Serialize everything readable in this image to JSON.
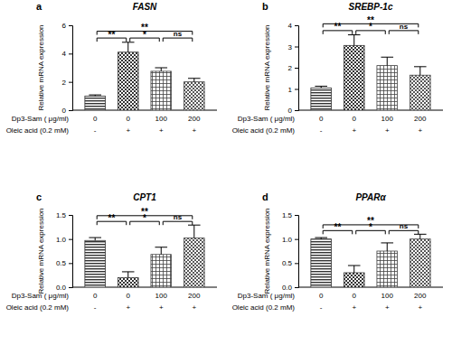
{
  "chart_data": [
    {
      "type": "bar",
      "panel": "a",
      "title": "FASN",
      "y_label": "Relative mRNA expression",
      "category_rows": [
        {
          "label": "Dp3-Sam ( μg/ml)",
          "values": [
            "0",
            "0",
            "100",
            "200"
          ]
        },
        {
          "label": "Oleic acid (0.2 mM)",
          "values": [
            "-",
            "+",
            "+",
            "+"
          ]
        }
      ],
      "values": [
        1.0,
        4.1,
        2.75,
        2.0
      ],
      "errors": [
        0.08,
        0.7,
        0.25,
        0.25
      ],
      "colors": [
        "#333333",
        "#333333",
        "#444444",
        "#444444"
      ],
      "ylim": [
        0,
        6
      ],
      "yticks": [
        0,
        2,
        4,
        6
      ],
      "significance": [
        {
          "from": 0,
          "to": 1,
          "label": "**"
        },
        {
          "from": 1,
          "to": 2,
          "label": "*"
        },
        {
          "from": 2,
          "to": 3,
          "label": "ns"
        },
        {
          "from": 0,
          "to": 3,
          "label": "**"
        }
      ]
    },
    {
      "type": "bar",
      "panel": "b",
      "title": "SREBP-1c",
      "y_label": "Relative mRNA expression",
      "category_rows": [
        {
          "label": "Dp3-Sam ( μg/ml)",
          "values": [
            "0",
            "0",
            "100",
            "200"
          ]
        },
        {
          "label": "Oleic acid (0.2 mM)",
          "values": [
            "-",
            "+",
            "+",
            "+"
          ]
        }
      ],
      "values": [
        1.05,
        3.05,
        2.1,
        1.65
      ],
      "errors": [
        0.08,
        0.5,
        0.4,
        0.4
      ],
      "colors": [
        "#333333",
        "#333333",
        "#444444",
        "#444444"
      ],
      "ylim": [
        0,
        4
      ],
      "yticks": [
        0,
        1,
        2,
        3,
        4
      ],
      "significance": [
        {
          "from": 0,
          "to": 1,
          "label": "**"
        },
        {
          "from": 1,
          "to": 2,
          "label": "*"
        },
        {
          "from": 2,
          "to": 3,
          "label": "ns"
        },
        {
          "from": 0,
          "to": 3,
          "label": "**"
        }
      ]
    },
    {
      "type": "bar",
      "panel": "c",
      "title": "CPT1",
      "y_label": "Relative mRNA expression",
      "category_rows": [
        {
          "label": "Dp3-Sam ( μg/ml)",
          "values": [
            "0",
            "0",
            "100",
            "200"
          ]
        },
        {
          "label": "Oleic acid (0.2 mM)",
          "values": [
            "-",
            "+",
            "+",
            "+"
          ]
        }
      ],
      "values": [
        0.97,
        0.2,
        0.68,
        1.02
      ],
      "errors": [
        0.06,
        0.12,
        0.15,
        0.27
      ],
      "colors": [
        "#333333",
        "#333333",
        "#444444",
        "#444444"
      ],
      "ylim": [
        0,
        1.5
      ],
      "yticks": [
        {
          "value": 0,
          "label": "0.0"
        },
        0.5,
        {
          "value": 1,
          "label": "1.0"
        },
        1.5
      ],
      "significance": [
        {
          "from": 0,
          "to": 1,
          "label": "**"
        },
        {
          "from": 1,
          "to": 2,
          "label": "*"
        },
        {
          "from": 2,
          "to": 3,
          "label": "ns"
        },
        {
          "from": 0,
          "to": 3,
          "label": "**"
        }
      ]
    },
    {
      "type": "bar",
      "panel": "d",
      "title": "PPARα",
      "y_label": "Relative mRNA expression",
      "category_rows": [
        {
          "label": "Dp3-Sam ( μg/ml)",
          "values": [
            "0",
            "0",
            "100",
            "200"
          ]
        },
        {
          "label": "Oleic acid (0.2 mM)",
          "values": [
            "-",
            "+",
            "+",
            "+"
          ]
        }
      ],
      "values": [
        1.0,
        0.3,
        0.75,
        1.0
      ],
      "errors": [
        0.03,
        0.15,
        0.17,
        0.1
      ],
      "colors": [
        "#333333",
        "#333333",
        "#444444",
        "#444444"
      ],
      "ylim": [
        0,
        1.5
      ],
      "yticks": [
        {
          "value": 0,
          "label": "0.0"
        },
        0.5,
        {
          "value": 1,
          "label": "1.0"
        },
        1.5
      ],
      "significance": [
        {
          "from": 0,
          "to": 1,
          "label": "**"
        },
        {
          "from": 1,
          "to": 2,
          "label": "*"
        },
        {
          "from": 2,
          "to": 3,
          "label": "ns"
        },
        {
          "from": 0,
          "to": 3,
          "label": "**"
        }
      ]
    }
  ]
}
